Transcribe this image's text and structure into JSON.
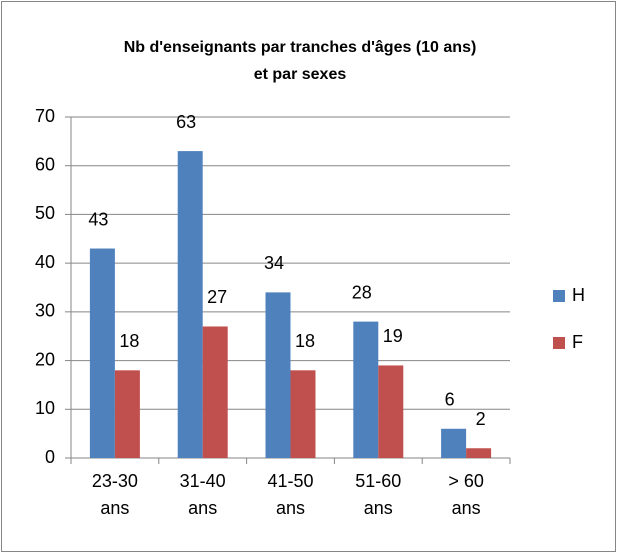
{
  "chart_data": {
    "type": "bar",
    "title": [
      "Nb d'enseignants par tranches d'âges (10 ans)",
      "et par sexes"
    ],
    "categories": [
      "23-30 ans",
      "31-40 ans",
      "41-50 ans",
      "51-60 ans",
      "> 60 ans"
    ],
    "series": [
      {
        "name": "H",
        "color": "#4f81bd",
        "values": [
          43,
          63,
          34,
          28,
          6
        ]
      },
      {
        "name": "F",
        "color": "#c0504d",
        "values": [
          18,
          27,
          18,
          19,
          2
        ]
      }
    ],
    "ylim": [
      0,
      70
    ],
    "yticks": [
      0,
      10,
      20,
      30,
      40,
      50,
      60,
      70
    ],
    "grid": true,
    "legend": "right"
  }
}
